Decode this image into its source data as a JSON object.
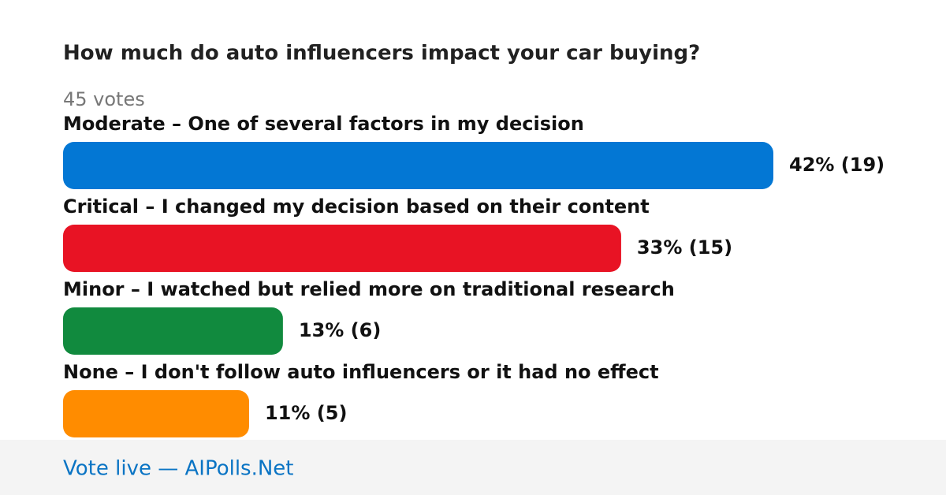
{
  "chart_data": {
    "type": "bar",
    "orientation": "horizontal",
    "title": "How much do auto influencers impact your car buying?",
    "subtitle": "45 votes",
    "categories": [
      "Moderate – One of several factors in my decision",
      "Critical – I changed my decision based on their content",
      "Minor – I watched but relied more on traditional research",
      "None – I don't follow auto influencers or it had no effect"
    ],
    "values": [
      42,
      33,
      13,
      11
    ],
    "value_labels": [
      "42% (19)",
      "33% (15)",
      "13% (6)",
      "11% (5)"
    ],
    "colors": [
      "#0377d4",
      "#e81324",
      "#118a3e",
      "#ff8c00"
    ],
    "footer": "Vote live — AIPolls.Net"
  }
}
